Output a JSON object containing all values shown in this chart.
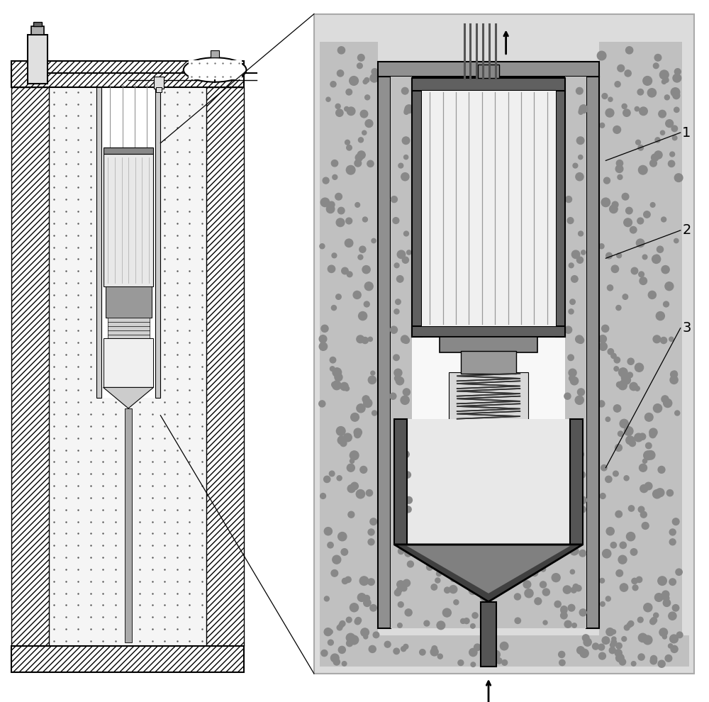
{
  "bg_color": "#ffffff",
  "detail_bg": "#dcdcdc",
  "hatch_fc": "#ffffff",
  "gravel_fc": "#b8b8b8",
  "gravel_dot_color": "#888888",
  "outer_wall_fc": "#909090",
  "inner_wall_fc": "#a0a0a0",
  "membrane_housing_fc": "#606060",
  "membrane_inner_fc": "#f0f0f0",
  "fiber_color": "#999999",
  "pump_fc": "#808080",
  "spring_color": "#333333",
  "vessel_wall_fc": "#555555",
  "vessel_inner_fc": "#e8e8e8",
  "cone_fc": "#404040",
  "cone_inner_fc": "#808080",
  "tube_color": "#555555",
  "dotted_fc": "#f0f0f0",
  "dot_color": "#555555",
  "label_fontsize": 14,
  "labels": [
    "1",
    "2",
    "3"
  ],
  "label_color": "#000000",
  "line_color": "#000000"
}
